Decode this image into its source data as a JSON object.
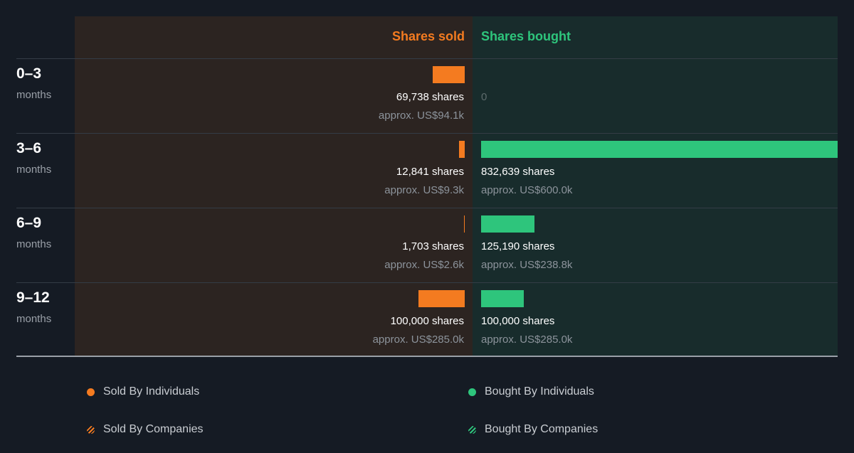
{
  "colors": {
    "sold": "#f47b20",
    "bought": "#2ec57c"
  },
  "chart_data": {
    "type": "bar",
    "headers": {
      "sold": "Shares sold",
      "bought": "Shares bought"
    },
    "periods": [
      {
        "label": "0–3",
        "unit": "months",
        "sold_shares": 69738,
        "sold_label": "69,738 shares",
        "sold_value": "approx. US$94.1k",
        "bought_shares": 0,
        "bought_label": "0",
        "bought_value": ""
      },
      {
        "label": "3–6",
        "unit": "months",
        "sold_shares": 12841,
        "sold_label": "12,841 shares",
        "sold_value": "approx. US$9.3k",
        "bought_shares": 832639,
        "bought_label": "832,639 shares",
        "bought_value": "approx. US$600.0k"
      },
      {
        "label": "6–9",
        "unit": "months",
        "sold_shares": 1703,
        "sold_label": "1,703 shares",
        "sold_value": "approx. US$2.6k",
        "bought_shares": 125190,
        "bought_label": "125,190 shares",
        "bought_value": "approx. US$238.8k"
      },
      {
        "label": "9–12",
        "unit": "months",
        "sold_shares": 100000,
        "sold_label": "100,000 shares",
        "sold_value": "approx. US$285.0k",
        "bought_shares": 100000,
        "bought_label": "100,000 shares",
        "bought_value": "approx. US$285.0k"
      }
    ]
  },
  "legend": {
    "sold_individuals": "Sold By Individuals",
    "sold_companies": "Sold By Companies",
    "bought_individuals": "Bought By Individuals",
    "bought_companies": "Bought By Companies"
  }
}
